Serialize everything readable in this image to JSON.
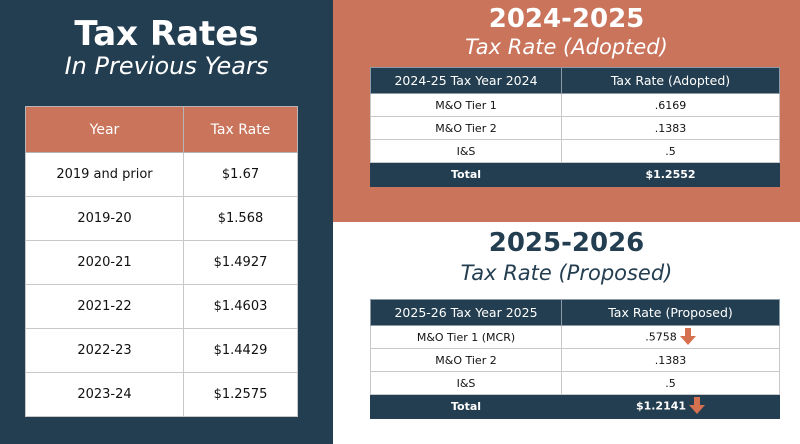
{
  "left": {
    "title": "Tax Rates",
    "subtitle": "In Previous Years",
    "table": {
      "headers": [
        "Year",
        "Tax Rate"
      ],
      "rows": [
        [
          "2019 and prior",
          "$1.67"
        ],
        [
          "2019-20",
          "$1.568"
        ],
        [
          "2020-21",
          "$1.4927"
        ],
        [
          "2021-22",
          "$1.4603"
        ],
        [
          "2022-23",
          "$1.4429"
        ],
        [
          "2023-24",
          "$1.2575"
        ]
      ]
    }
  },
  "adopted": {
    "title": "2024-2025",
    "subtitle": "Tax Rate (Adopted)",
    "headers": [
      "2024-25 Tax Year 2024",
      "Tax Rate (Adopted)"
    ],
    "rows": [
      [
        "M&O Tier 1",
        ".6169"
      ],
      [
        "M&O Tier 2",
        ".1383"
      ],
      [
        "I&S",
        ".5"
      ]
    ],
    "total": [
      "Total",
      "$1.2552"
    ]
  },
  "proposed": {
    "title": "2025-2026",
    "subtitle": "Tax Rate (Proposed)",
    "headers": [
      "2025-26 Tax Year 2025",
      "Tax Rate (Proposed)"
    ],
    "rows": [
      [
        "M&O Tier 1 (MCR)",
        ".5758"
      ],
      [
        "M&O Tier 2",
        ".1383"
      ],
      [
        "I&S",
        ".5"
      ]
    ],
    "total": [
      "Total",
      "$1.2141"
    ]
  },
  "colors": {
    "navy": "#233e50",
    "terracotta": "#c9745b",
    "arrow": "#d6714f"
  },
  "icons": {
    "decrease": "arrow-down-icon"
  }
}
